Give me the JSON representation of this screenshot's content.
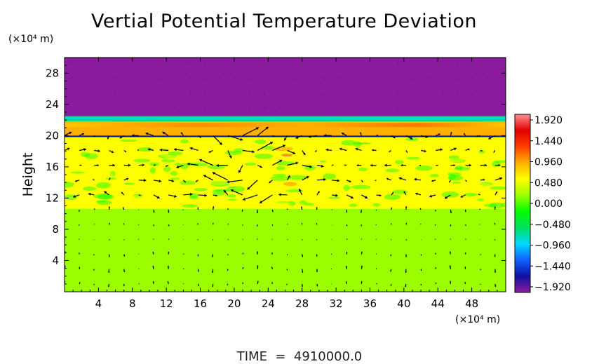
{
  "chart_data": {
    "type": "heatmap",
    "title": "Vertial Potential Temperature Deviation",
    "ylabel": "Height",
    "y_unit": "(×10⁴ m)",
    "x_unit": "(×10⁴ m)",
    "xlim": [
      0,
      52
    ],
    "ylim": [
      0,
      30
    ],
    "x_ticks": [
      4,
      8,
      12,
      16,
      20,
      24,
      28,
      32,
      36,
      40,
      44,
      48
    ],
    "y_ticks": [
      4,
      8,
      12,
      16,
      20,
      24,
      28
    ],
    "colorbar": {
      "min": -1.92,
      "max": 1.92,
      "labels": [
        "1.920",
        "1.440",
        "0.960",
        "0.480",
        "0.000",
        "−0.480",
        "−0.960",
        "−1.440",
        "−1.920"
      ],
      "colors": [
        "#8a1a9e",
        "#1010a0",
        "#1060ff",
        "#00d8ff",
        "#00e060",
        "#00ff00",
        "#9cff00",
        "#ffff00",
        "#ffb000",
        "#ff4000",
        "#e00000",
        "#ff9090"
      ]
    },
    "layers": [
      {
        "y_from": 22.5,
        "y_to": 30,
        "value": -1.92
      },
      {
        "y_from": 21.8,
        "y_to": 22.5,
        "value": -0.6
      },
      {
        "y_from": 20.0,
        "y_to": 21.8,
        "value": 0.7
      },
      {
        "y_from": 19.8,
        "y_to": 20.0,
        "value": -1.4
      },
      {
        "y_from": 10.6,
        "y_to": 19.8,
        "value": 0.4
      },
      {
        "y_from": 0,
        "y_to": 10.6,
        "value": 0.05
      }
    ],
    "vector_field": "wind vectors on a regular grid; strongest circulation between heights 12 and 20 near x 16–28"
  },
  "footer": {
    "time_label": "TIME  =  4910000.0"
  }
}
